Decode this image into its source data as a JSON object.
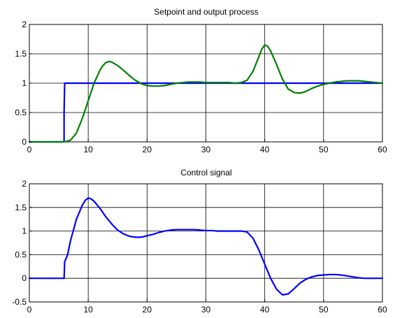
{
  "chart_data": [
    {
      "type": "line",
      "title": "Setpoint and output process",
      "xlabel": "",
      "ylabel": "",
      "xlim": [
        0,
        60
      ],
      "ylim": [
        0,
        2
      ],
      "xticks": [
        "0",
        "10",
        "20",
        "30",
        "40",
        "50",
        "60"
      ],
      "yticks": [
        "0",
        "0.5",
        "1",
        "1.5",
        "2"
      ],
      "grid": true,
      "series": [
        {
          "color": "#0000ff",
          "x": [
            0,
            5.9,
            5.9,
            6.0,
            60
          ],
          "y": [
            0,
            0,
            0.5,
            1.0,
            1.0
          ]
        },
        {
          "color": "#007f00",
          "x": [
            0,
            5,
            6,
            7,
            8,
            9,
            10,
            11,
            12,
            12.5,
            13,
            13.5,
            14,
            15,
            16,
            17,
            18,
            19,
            20,
            21,
            22,
            23,
            24,
            25,
            26,
            27,
            28,
            29,
            30,
            31,
            32,
            33,
            34,
            35,
            36,
            37,
            38,
            39,
            39.5,
            40,
            40.5,
            41,
            42,
            43,
            44,
            45,
            46,
            47,
            48,
            49,
            50,
            51,
            52,
            53,
            54,
            55,
            56,
            57,
            58,
            59,
            60
          ],
          "y": [
            0,
            0,
            0,
            0.03,
            0.15,
            0.4,
            0.7,
            1.0,
            1.22,
            1.3,
            1.35,
            1.37,
            1.36,
            1.3,
            1.22,
            1.13,
            1.05,
            0.99,
            0.96,
            0.95,
            0.95,
            0.96,
            0.98,
            1.0,
            1.01,
            1.02,
            1.02,
            1.02,
            1.01,
            1.01,
            1.01,
            1.01,
            1.01,
            1.0,
            1.01,
            1.05,
            1.2,
            1.45,
            1.58,
            1.65,
            1.63,
            1.55,
            1.32,
            1.07,
            0.9,
            0.84,
            0.83,
            0.86,
            0.91,
            0.95,
            0.98,
            1.0,
            1.02,
            1.03,
            1.04,
            1.04,
            1.04,
            1.03,
            1.02,
            1.01,
            1.0
          ]
        }
      ]
    },
    {
      "type": "line",
      "title": "Control signal",
      "xlabel": "",
      "ylabel": "",
      "xlim": [
        0,
        60
      ],
      "ylim": [
        -0.5,
        2
      ],
      "xticks": [
        "0",
        "10",
        "20",
        "30",
        "40",
        "50",
        "60"
      ],
      "yticks": [
        "-0.5",
        "0",
        "0.5",
        "1",
        "1.5",
        "2"
      ],
      "grid": true,
      "series": [
        {
          "color": "#0000ff",
          "x": [
            0,
            5.9,
            6.0,
            6.5,
            7,
            8,
            9,
            9.5,
            10,
            10.5,
            11,
            12,
            13,
            14,
            15,
            16,
            17,
            18,
            19,
            20,
            21,
            22,
            23,
            24,
            25,
            26,
            27,
            28,
            29,
            30,
            31,
            32,
            33,
            34,
            35,
            36,
            37,
            38,
            39,
            40,
            41,
            42,
            43,
            44,
            45,
            46,
            47,
            48,
            49,
            50,
            51,
            52,
            53,
            54,
            55,
            56,
            57,
            58,
            59,
            60
          ],
          "y": [
            0,
            0,
            0.35,
            0.5,
            0.8,
            1.25,
            1.55,
            1.65,
            1.7,
            1.68,
            1.63,
            1.48,
            1.3,
            1.15,
            1.02,
            0.94,
            0.89,
            0.87,
            0.87,
            0.9,
            0.93,
            0.97,
            1.0,
            1.02,
            1.03,
            1.03,
            1.03,
            1.03,
            1.02,
            1.01,
            1.01,
            1.0,
            1.0,
            1.0,
            1.0,
            1.0,
            0.98,
            0.85,
            0.6,
            0.3,
            0.0,
            -0.23,
            -0.35,
            -0.33,
            -0.22,
            -0.1,
            -0.02,
            0.03,
            0.06,
            0.07,
            0.08,
            0.08,
            0.07,
            0.05,
            0.03,
            0.01,
            0.0,
            0.0,
            0.0,
            0.0
          ]
        }
      ]
    }
  ]
}
